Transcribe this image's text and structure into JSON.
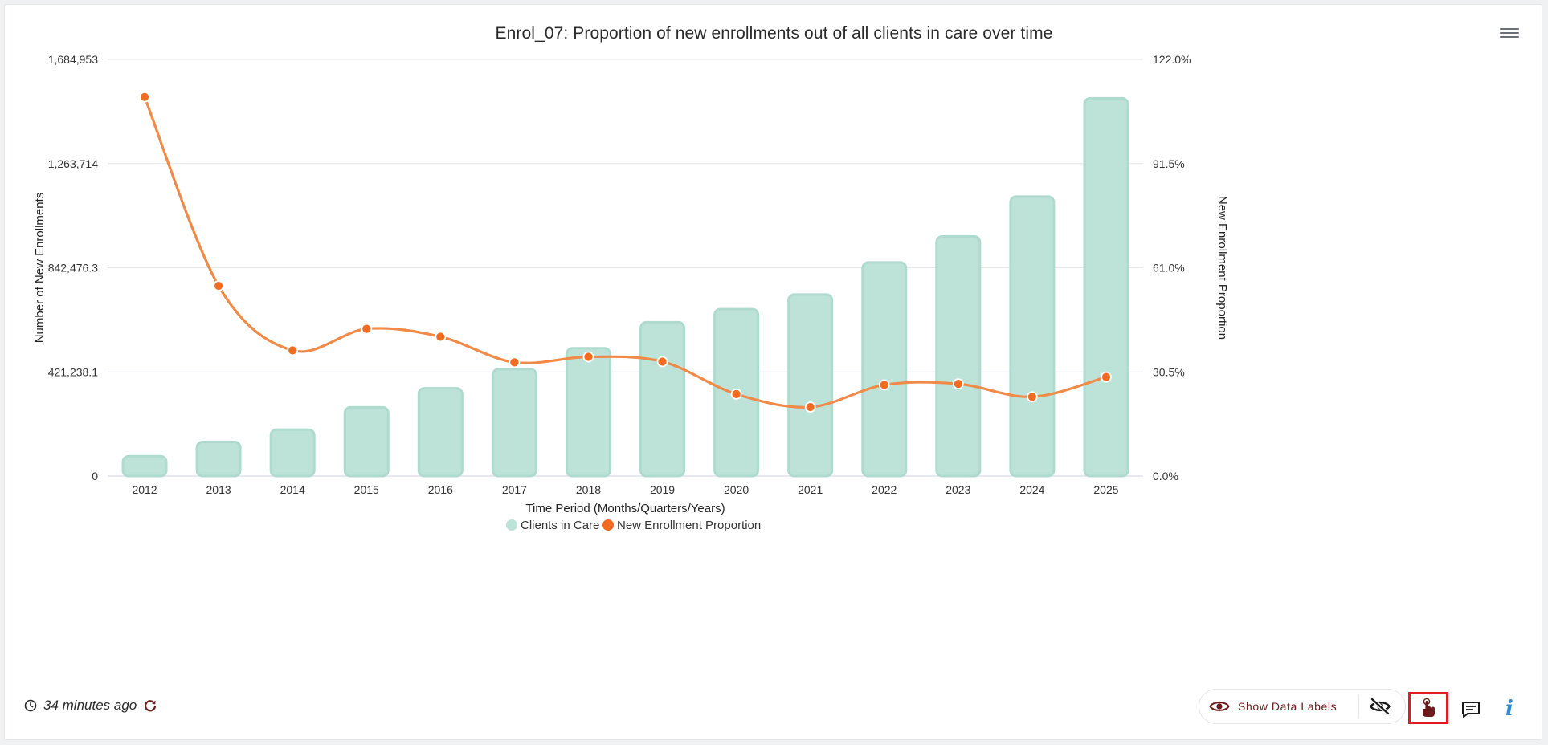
{
  "chart_data": {
    "type": "bar+line",
    "title": "Enrol_07: Proportion of new enrollments out of all clients in care over time",
    "xlabel": "Time Period (Months/Quarters/Years)",
    "ylabel_left": "Number of New Enrollments",
    "ylabel_right": "New Enrollment Proportion",
    "categories": [
      "2012",
      "2013",
      "2014",
      "2015",
      "2016",
      "2017",
      "2018",
      "2019",
      "2020",
      "2021",
      "2022",
      "2023",
      "2024",
      "2025"
    ],
    "y_left": {
      "min": 0,
      "max": 1684953,
      "ticks": [
        "0",
        "421,238.1",
        "842,476.3",
        "1,263,714",
        "1,684,953"
      ]
    },
    "y_right": {
      "min": 0,
      "max": 122.0,
      "ticks": [
        "0.0%",
        "30.5%",
        "61.0%",
        "91.5%",
        "122.0%"
      ]
    },
    "series": [
      {
        "name": "Clients in Care",
        "type": "bar",
        "axis": "left",
        "color": "#bde3d9",
        "values": [
          80000,
          138000,
          188000,
          278000,
          355000,
          432000,
          517000,
          622000,
          675000,
          734000,
          864000,
          969000,
          1130000,
          1528000
        ]
      },
      {
        "name": "New Enrollment Proportion",
        "type": "line",
        "axis": "right",
        "color": "#f08a48",
        "marker_color": "#f26b21",
        "values": [
          111.0,
          55.7,
          36.8,
          43.1,
          40.8,
          33.3,
          34.9,
          33.5,
          24.0,
          20.2,
          26.7,
          27.0,
          23.2,
          29.0
        ]
      }
    ],
    "legend": "bottom-center",
    "grid": true
  },
  "footer": {
    "updated_text": "34 minutes ago",
    "show_data_labels": "Show Data Labels"
  },
  "icons": {
    "menu": "hamburger-menu-icon",
    "clock": "clock-icon",
    "refresh": "refresh-icon",
    "eye": "eye-icon",
    "eye_off": "eye-off-icon",
    "interact": "hand-pointer-icon",
    "comment": "comment-icon",
    "info": "info-icon"
  },
  "info_glyph": "i"
}
